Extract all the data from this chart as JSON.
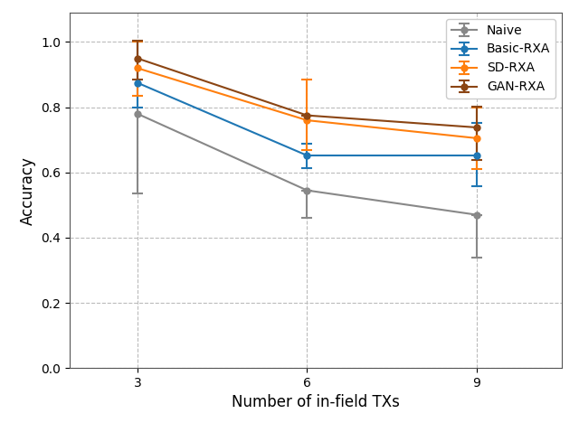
{
  "x": [
    3,
    6,
    9
  ],
  "series": {
    "Naive": {
      "y": [
        0.78,
        0.545,
        0.47
      ],
      "yerr_low": [
        0.245,
        0.085,
        0.13
      ],
      "yerr_high": [
        0.22,
        0.0,
        0.0
      ],
      "color": "#888888",
      "marker": "o"
    },
    "Basic-RXA": {
      "y": [
        0.875,
        0.652,
        0.652
      ],
      "yerr_low": [
        0.075,
        0.04,
        0.095
      ],
      "yerr_high": [
        0.125,
        0.035,
        0.1
      ],
      "color": "#1f77b4",
      "marker": "o"
    },
    "SD-RXA": {
      "y": [
        0.92,
        0.76,
        0.705
      ],
      "yerr_low": [
        0.085,
        0.09,
        0.095
      ],
      "yerr_high": [
        0.08,
        0.125,
        0.095
      ],
      "color": "#ff7f0e",
      "marker": "o"
    },
    "GAN-RXA": {
      "y": [
        0.95,
        0.775,
        0.738
      ],
      "yerr_low": [
        0.065,
        0.0,
        0.1
      ],
      "yerr_high": [
        0.055,
        0.0,
        0.065
      ],
      "color": "#8B4513",
      "marker": "o"
    }
  },
  "xlabel": "Number of in-field TXs",
  "ylabel": "Accuracy",
  "ylim": [
    0.0,
    1.09
  ],
  "yticks": [
    0.0,
    0.2,
    0.4,
    0.6,
    0.8,
    1.0
  ],
  "xticks": [
    3,
    6,
    9
  ],
  "grid_color": "#bbbbbb",
  "legend_loc": "upper right",
  "figsize": [
    6.4,
    4.68
  ],
  "dpi": 100
}
